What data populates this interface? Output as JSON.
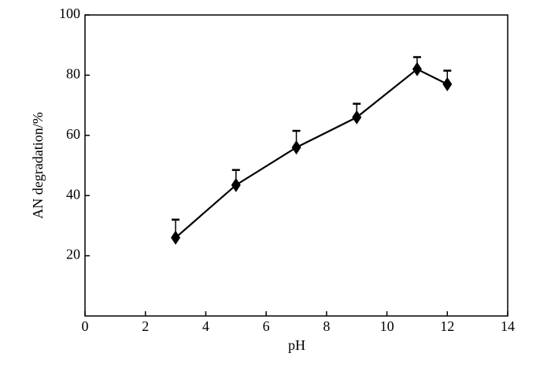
{
  "chart_data": {
    "type": "line",
    "x_label": "pH",
    "y_label": "AN degradation/%",
    "x": [
      3,
      5,
      7,
      9,
      11,
      12
    ],
    "series": [
      {
        "color": "#000000",
        "values": [
          26,
          43.5,
          56,
          66,
          82,
          77
        ],
        "errors": [
          6,
          5,
          5.5,
          4.5,
          4,
          4.5
        ]
      }
    ],
    "xlim": [
      0,
      14
    ],
    "xticks": [
      0,
      2,
      4,
      6,
      8,
      10,
      12,
      14
    ],
    "ylim": [
      0,
      100
    ],
    "yticks": [
      20,
      40,
      60,
      80,
      100
    ],
    "marker": "diamond"
  }
}
